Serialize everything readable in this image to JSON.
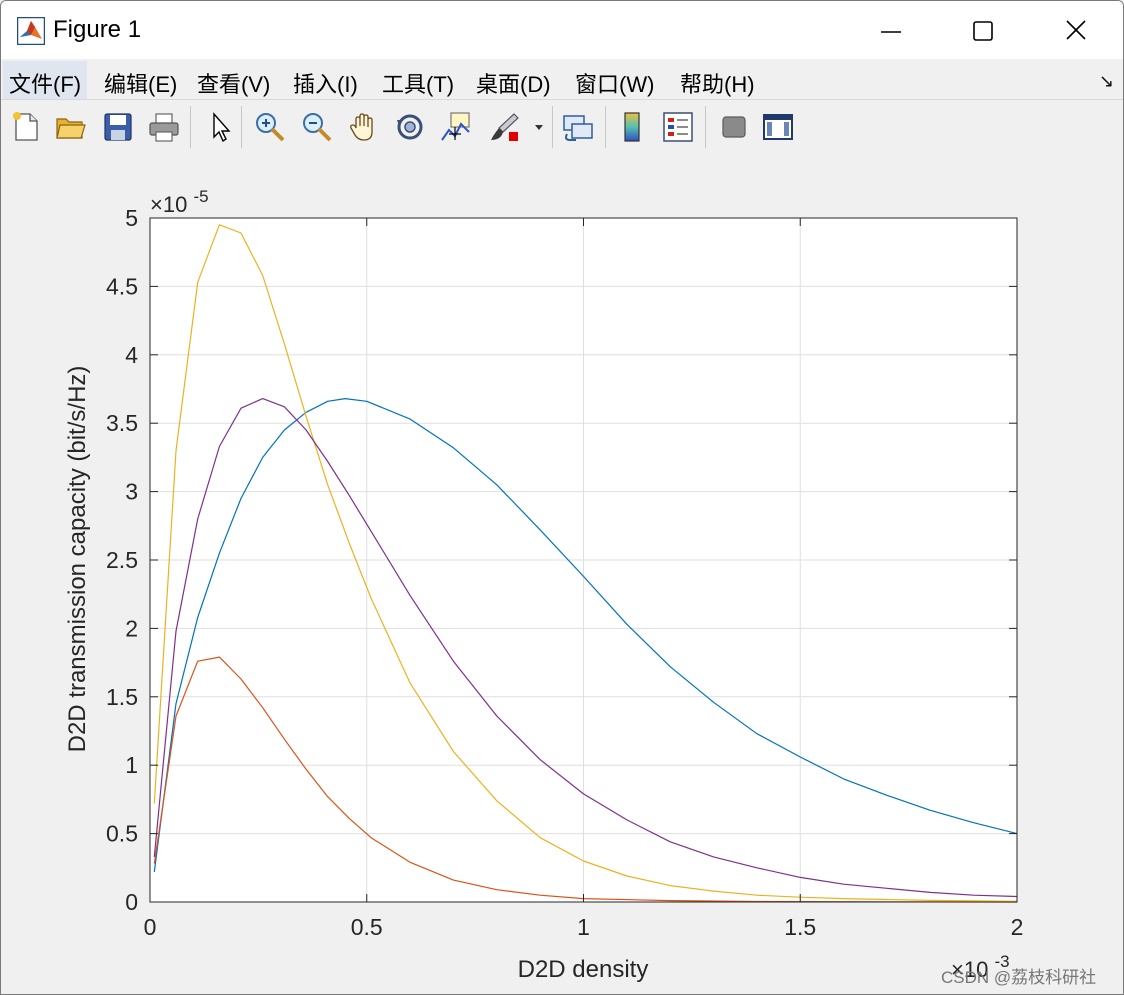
{
  "window": {
    "title": "Figure 1",
    "menu": [
      "文件(F)",
      "编辑(E)",
      "查看(V)",
      "插入(I)",
      "工具(T)",
      "桌面(D)",
      "窗口(W)",
      "帮助(H)"
    ]
  },
  "toolbar_icons": [
    "new-figure-icon",
    "open-folder-icon",
    "save-icon",
    "print-icon",
    "pointer-icon",
    "zoom-in-icon",
    "zoom-out-icon",
    "pan-hand-icon",
    "rotate-3d-icon",
    "data-cursor-icon",
    "brush-icon",
    "brush-dropdown-icon",
    "link-plot-icon",
    "colorbar-icon",
    "legend-icon",
    "hide-plot-tools-icon",
    "show-plot-tools-icon"
  ],
  "colors": {
    "series_blue": "#0072bd",
    "series_orange": "#d95319",
    "series_yellow": "#edb120",
    "series_purple": "#7e2f8e"
  },
  "watermark": "CSDN @荔枝科研社",
  "chart_data": {
    "type": "line",
    "title": "",
    "xlabel": "D2D density",
    "ylabel": "D2D transmission capacity (bit/s/Hz)",
    "x_exponent_label": "×10",
    "x_exponent_power": "-3",
    "y_exponent_label": "×10",
    "y_exponent_power": "-5",
    "x_scale": 0.001,
    "y_scale": 1e-05,
    "xlim": [
      0,
      2
    ],
    "ylim": [
      0,
      5
    ],
    "xticks": [
      0,
      0.5,
      1,
      1.5,
      2
    ],
    "xtick_labels": [
      "0",
      "0.5",
      "1",
      "1.5",
      "2"
    ],
    "yticks": [
      0,
      0.5,
      1,
      1.5,
      2,
      2.5,
      3,
      3.5,
      4,
      4.5,
      5
    ],
    "ytick_labels": [
      "0",
      "0.5",
      "1",
      "1.5",
      "2",
      "2.5",
      "3",
      "3.5",
      "4",
      "4.5",
      "5"
    ],
    "grid": true,
    "series": [
      {
        "color": "#0072bd",
        "points": [
          [
            0.01,
            0.22
          ],
          [
            0.06,
            1.45
          ],
          [
            0.11,
            2.08
          ],
          [
            0.16,
            2.55
          ],
          [
            0.21,
            2.95
          ],
          [
            0.26,
            3.25
          ],
          [
            0.31,
            3.45
          ],
          [
            0.36,
            3.58
          ],
          [
            0.41,
            3.66
          ],
          [
            0.45,
            3.68
          ],
          [
            0.5,
            3.66
          ],
          [
            0.6,
            3.53
          ],
          [
            0.7,
            3.32
          ],
          [
            0.8,
            3.05
          ],
          [
            0.9,
            2.72
          ],
          [
            1.0,
            2.38
          ],
          [
            1.1,
            2.03
          ],
          [
            1.2,
            1.72
          ],
          [
            1.3,
            1.46
          ],
          [
            1.4,
            1.23
          ],
          [
            1.5,
            1.06
          ],
          [
            1.6,
            0.9
          ],
          [
            1.7,
            0.78
          ],
          [
            1.8,
            0.67
          ],
          [
            1.9,
            0.58
          ],
          [
            2.0,
            0.5
          ]
        ]
      },
      {
        "color": "#d95319",
        "points": [
          [
            0.01,
            0.28
          ],
          [
            0.06,
            1.36
          ],
          [
            0.11,
            1.76
          ],
          [
            0.16,
            1.79
          ],
          [
            0.21,
            1.63
          ],
          [
            0.26,
            1.42
          ],
          [
            0.31,
            1.19
          ],
          [
            0.36,
            0.97
          ],
          [
            0.41,
            0.77
          ],
          [
            0.46,
            0.61
          ],
          [
            0.51,
            0.47
          ],
          [
            0.6,
            0.29
          ],
          [
            0.7,
            0.16
          ],
          [
            0.8,
            0.09
          ],
          [
            0.9,
            0.05
          ],
          [
            1.0,
            0.025
          ],
          [
            1.2,
            0.01
          ],
          [
            1.4,
            0.004
          ],
          [
            1.6,
            0.002
          ],
          [
            1.8,
            0.001
          ],
          [
            2.0,
            0.0
          ]
        ]
      },
      {
        "color": "#edb120",
        "points": [
          [
            0.01,
            0.72
          ],
          [
            0.06,
            3.3
          ],
          [
            0.11,
            4.53
          ],
          [
            0.16,
            4.95
          ],
          [
            0.21,
            4.89
          ],
          [
            0.26,
            4.58
          ],
          [
            0.31,
            4.08
          ],
          [
            0.36,
            3.55
          ],
          [
            0.41,
            3.05
          ],
          [
            0.46,
            2.62
          ],
          [
            0.51,
            2.22
          ],
          [
            0.6,
            1.6
          ],
          [
            0.7,
            1.1
          ],
          [
            0.8,
            0.74
          ],
          [
            0.9,
            0.47
          ],
          [
            1.0,
            0.3
          ],
          [
            1.1,
            0.19
          ],
          [
            1.2,
            0.12
          ],
          [
            1.3,
            0.08
          ],
          [
            1.4,
            0.05
          ],
          [
            1.5,
            0.035
          ],
          [
            1.6,
            0.025
          ],
          [
            1.7,
            0.018
          ],
          [
            1.8,
            0.012
          ],
          [
            1.9,
            0.008
          ],
          [
            2.0,
            0.005
          ]
        ]
      },
      {
        "color": "#7e2f8e",
        "points": [
          [
            0.01,
            0.33
          ],
          [
            0.06,
            1.98
          ],
          [
            0.11,
            2.8
          ],
          [
            0.16,
            3.33
          ],
          [
            0.21,
            3.61
          ],
          [
            0.26,
            3.68
          ],
          [
            0.31,
            3.62
          ],
          [
            0.36,
            3.45
          ],
          [
            0.41,
            3.22
          ],
          [
            0.46,
            2.97
          ],
          [
            0.51,
            2.71
          ],
          [
            0.6,
            2.24
          ],
          [
            0.7,
            1.76
          ],
          [
            0.8,
            1.36
          ],
          [
            0.9,
            1.04
          ],
          [
            1.0,
            0.79
          ],
          [
            1.1,
            0.6
          ],
          [
            1.2,
            0.44
          ],
          [
            1.3,
            0.33
          ],
          [
            1.4,
            0.25
          ],
          [
            1.5,
            0.18
          ],
          [
            1.6,
            0.13
          ],
          [
            1.7,
            0.1
          ],
          [
            1.8,
            0.07
          ],
          [
            1.9,
            0.05
          ],
          [
            2.0,
            0.04
          ]
        ]
      }
    ]
  }
}
